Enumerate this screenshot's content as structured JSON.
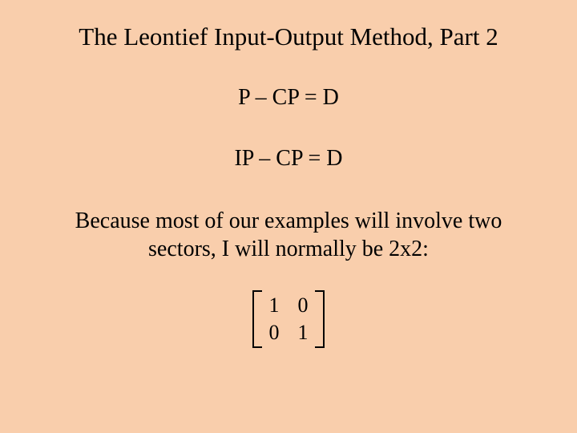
{
  "background_color": "#f9ceac",
  "text_color": "#000000",
  "font_family": "Times New Roman",
  "title": "The Leontief Input-Output Method, Part 2",
  "title_fontsize": 31,
  "equation1": "P – CP = D",
  "equation2": "IP – CP = D",
  "equation_fontsize": 28,
  "body": "Because most of our examples will involve two sectors, I will normally be 2x2:",
  "body_fontsize": 28,
  "matrix": {
    "rows": [
      [
        "1",
        "0"
      ],
      [
        "0",
        "1"
      ]
    ],
    "bracket_color": "#000000",
    "cell_fontsize": 26
  }
}
